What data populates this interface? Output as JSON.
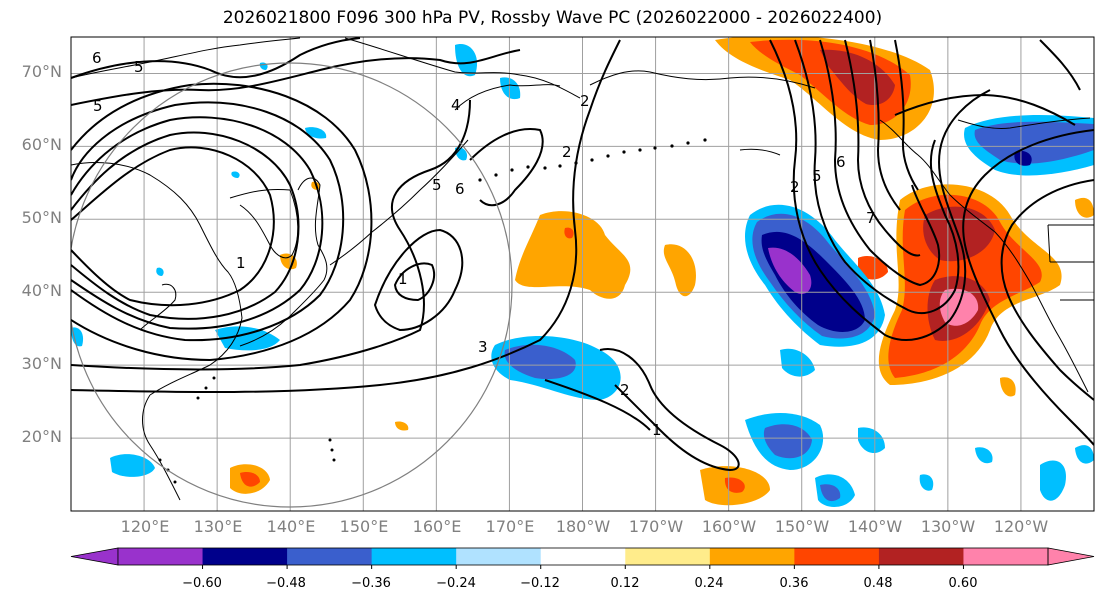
{
  "title": "2026021800 F096 300 hPa PV, Rossby Wave PC (2026022000 - 2026022400)",
  "map": {
    "lat_labels": [
      "70°N",
      "60°N",
      "50°N",
      "40°N",
      "30°N",
      "20°N"
    ],
    "lat_values": [
      70,
      60,
      50,
      40,
      30,
      20
    ],
    "lon_labels": [
      "120°E",
      "130°E",
      "140°E",
      "150°E",
      "160°E",
      "170°E",
      "180°W",
      "170°W",
      "160°W",
      "150°W",
      "140°W",
      "130°W",
      "120°W"
    ],
    "lon_values": [
      120,
      130,
      140,
      150,
      160,
      170,
      180,
      190,
      200,
      210,
      220,
      230,
      240
    ],
    "lat_range": [
      10,
      75
    ],
    "lon_range": [
      110,
      250
    ],
    "contour_labels": [
      "6",
      "5",
      "5",
      "4",
      "2",
      "2",
      "5",
      "6",
      "1",
      "1",
      "3",
      "2",
      "1",
      "7",
      "6",
      "5",
      "2"
    ]
  },
  "colorbar": {
    "colors": [
      "#9932cc",
      "#00008b",
      "#3a5fcd",
      "#00bfff",
      "#b0e2ff",
      "#ffffff",
      "#ffec8b",
      "#ffa500",
      "#ff4500",
      "#b22222",
      "#ff82ab"
    ],
    "ticks": [
      "−0.60",
      "−0.48",
      "−0.36",
      "−0.24",
      "−0.12",
      "0.12",
      "0.24",
      "0.36",
      "0.48",
      "0.60"
    ],
    "tick_values": [
      -0.6,
      -0.48,
      -0.36,
      -0.24,
      -0.12,
      0.12,
      0.24,
      0.36,
      0.48,
      0.6
    ],
    "under_color": "#9932cc",
    "over_color": "#ff82ab"
  }
}
